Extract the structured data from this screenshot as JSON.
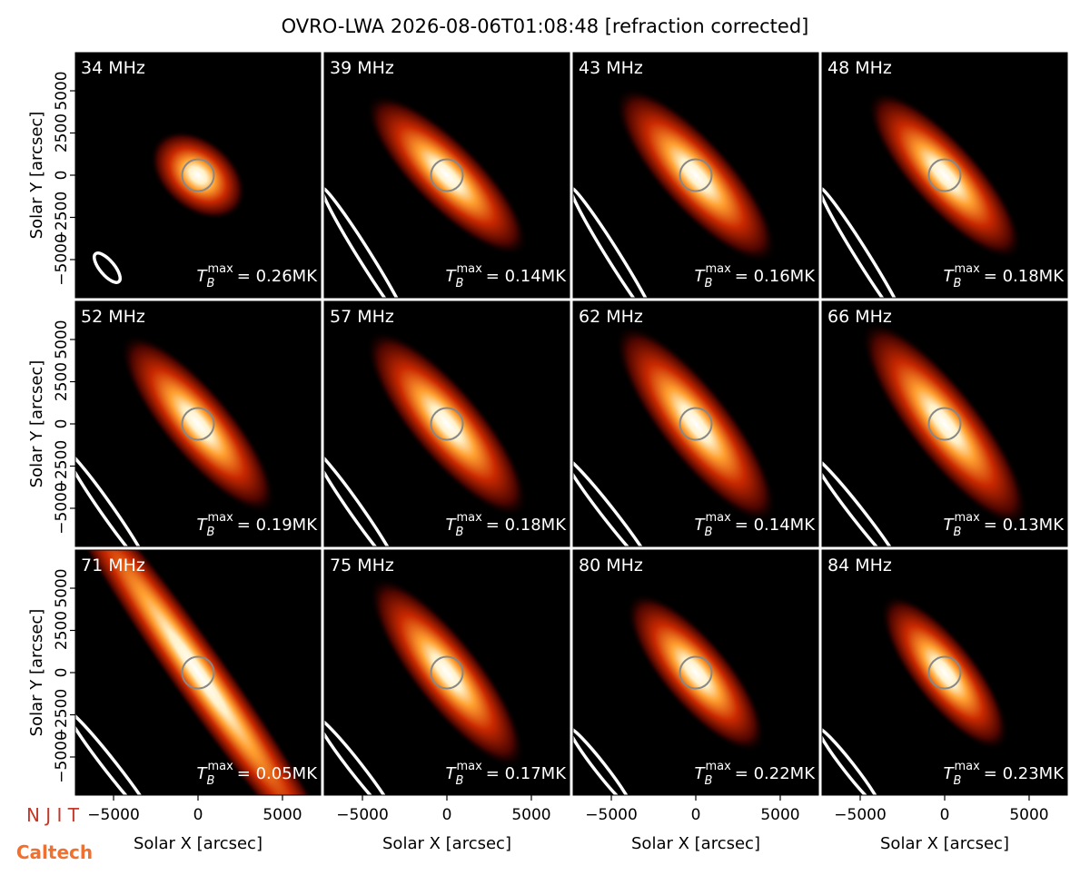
{
  "title": "OVRO-LWA 2026-08-06T01:08:48 [refraction corrected]",
  "x_label": "Solar X [arcsec]",
  "y_label": "Solar Y [arcsec]",
  "xlim": [
    -7260,
    7260
  ],
  "ylim": [
    -7260,
    7260
  ],
  "xticks": [
    {
      "value": -5000,
      "label": "−5000"
    },
    0,
    5000
  ],
  "yticks": [
    {
      "value": -5000,
      "label": "−5000"
    },
    {
      "value": -2500,
      "label": "−2500"
    },
    0,
    2500,
    5000
  ],
  "tb_symbol": "T",
  "tb_sub": "B",
  "tb_sup": "max",
  "panels": [
    {
      "frequency": "34 MHz",
      "tb_value": "= 0.26MK"
    },
    {
      "frequency": "39 MHz",
      "tb_value": "= 0.14MK"
    },
    {
      "frequency": "43 MHz",
      "tb_value": "= 0.16MK"
    },
    {
      "frequency": "48 MHz",
      "tb_value": "= 0.18MK"
    },
    {
      "frequency": "52 MHz",
      "tb_value": "= 0.19MK"
    },
    {
      "frequency": "57 MHz",
      "tb_value": "= 0.18MK"
    },
    {
      "frequency": "62 MHz",
      "tb_value": "= 0.14MK"
    },
    {
      "frequency": "66 MHz",
      "tb_value": "= 0.13MK"
    },
    {
      "frequency": "71 MHz",
      "tb_value": "= 0.05MK"
    },
    {
      "frequency": "75 MHz",
      "tb_value": "= 0.17MK"
    },
    {
      "frequency": "80 MHz",
      "tb_value": "= 0.22MK"
    },
    {
      "frequency": "84 MHz",
      "tb_value": "= 0.23MK"
    }
  ],
  "logos": {
    "njit": "N J I T",
    "caltech": "Caltech"
  }
}
